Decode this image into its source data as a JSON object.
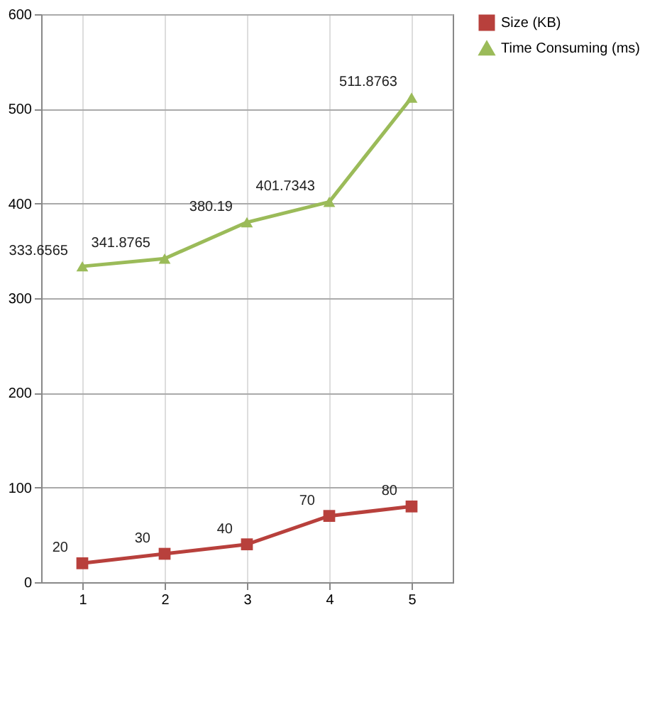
{
  "chart_data": {
    "type": "line",
    "categories": [
      "1",
      "2",
      "3",
      "4",
      "5"
    ],
    "series": [
      {
        "name": "Size (KB)",
        "color": "#b8403c",
        "marker": "square",
        "values": [
          20,
          30,
          40,
          70,
          80
        ]
      },
      {
        "name": "Time Consuming (ms)",
        "color": "#9bbb59",
        "marker": "triangle",
        "values": [
          333.6565,
          341.8765,
          380.19,
          401.7343,
          511.8763
        ]
      }
    ],
    "ylim": [
      0,
      600
    ],
    "yticks": [
      0,
      100,
      200,
      300,
      400,
      500,
      600
    ],
    "grid": true,
    "legend": "right",
    "data_labels": true,
    "line_style": "solid"
  }
}
